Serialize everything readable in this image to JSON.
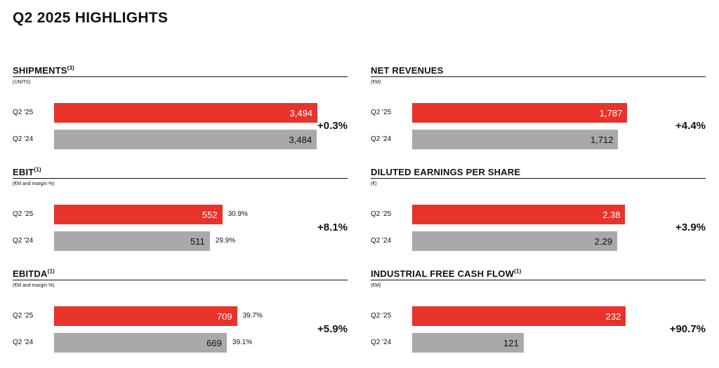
{
  "page": {
    "title": "Q2 2025 HIGHLIGHTS"
  },
  "colors": {
    "current": "#e8322a",
    "prior": "#a9a9a9"
  },
  "chart_data": [
    {
      "type": "bar",
      "orientation": "horizontal",
      "title": "SHIPMENTS",
      "footnote": "(3)",
      "unit": "(UNITS)",
      "categories": [
        "Q2 '25",
        "Q2 '24"
      ],
      "values": [
        3494,
        3484
      ],
      "value_labels": [
        "3,494",
        "3,484"
      ],
      "margins": [],
      "change": "+0.3%",
      "xlim": [
        0,
        3800
      ]
    },
    {
      "type": "bar",
      "orientation": "horizontal",
      "title": "NET REVENUES",
      "footnote": "",
      "unit": "(€M)",
      "categories": [
        "Q2 '25",
        "Q2 '24"
      ],
      "values": [
        1787,
        1712
      ],
      "value_labels": [
        "1,787",
        "1,712"
      ],
      "margins": [],
      "change": "+4.4%",
      "xlim": [
        0,
        2380
      ]
    },
    {
      "type": "bar",
      "orientation": "horizontal",
      "title": "EBIT",
      "footnote": "(1)",
      "unit": "(€M and margin %)",
      "categories": [
        "Q2 '25",
        "Q2 '24"
      ],
      "values": [
        552,
        511
      ],
      "value_labels": [
        "552",
        "511"
      ],
      "margins": [
        "30.9%",
        "29.9%"
      ],
      "change": "+8.1%",
      "xlim": [
        0,
        940
      ]
    },
    {
      "type": "bar",
      "orientation": "horizontal",
      "title": "DILUTED EARNINGS PER SHARE",
      "footnote": "",
      "unit": "(€)",
      "categories": [
        "Q2 '25",
        "Q2 '24"
      ],
      "values": [
        2.38,
        2.29
      ],
      "value_labels": [
        "2.38",
        "2.29"
      ],
      "margins": [],
      "change": "+3.9%",
      "xlim": [
        0,
        3.2
      ]
    },
    {
      "type": "bar",
      "orientation": "horizontal",
      "title": "EBITDA",
      "footnote": "(1)",
      "unit": "(€M and margin %)",
      "categories": [
        "Q2 '25",
        "Q2 '24"
      ],
      "values": [
        709,
        669
      ],
      "value_labels": [
        "709",
        "669"
      ],
      "margins": [
        "39.7%",
        "39.1%"
      ],
      "change": "+5.9%",
      "xlim": [
        0,
        1110
      ]
    },
    {
      "type": "bar",
      "orientation": "horizontal",
      "title": "INDUSTRIAL FREE CASH FLOW",
      "footnote": "(1)",
      "unit": "(€M)",
      "categories": [
        "Q2 '25",
        "Q2 '24"
      ],
      "values": [
        232,
        121
      ],
      "value_labels": [
        "232",
        "121"
      ],
      "margins": [],
      "change": "+90.7%",
      "xlim": [
        0,
        311
      ]
    }
  ]
}
